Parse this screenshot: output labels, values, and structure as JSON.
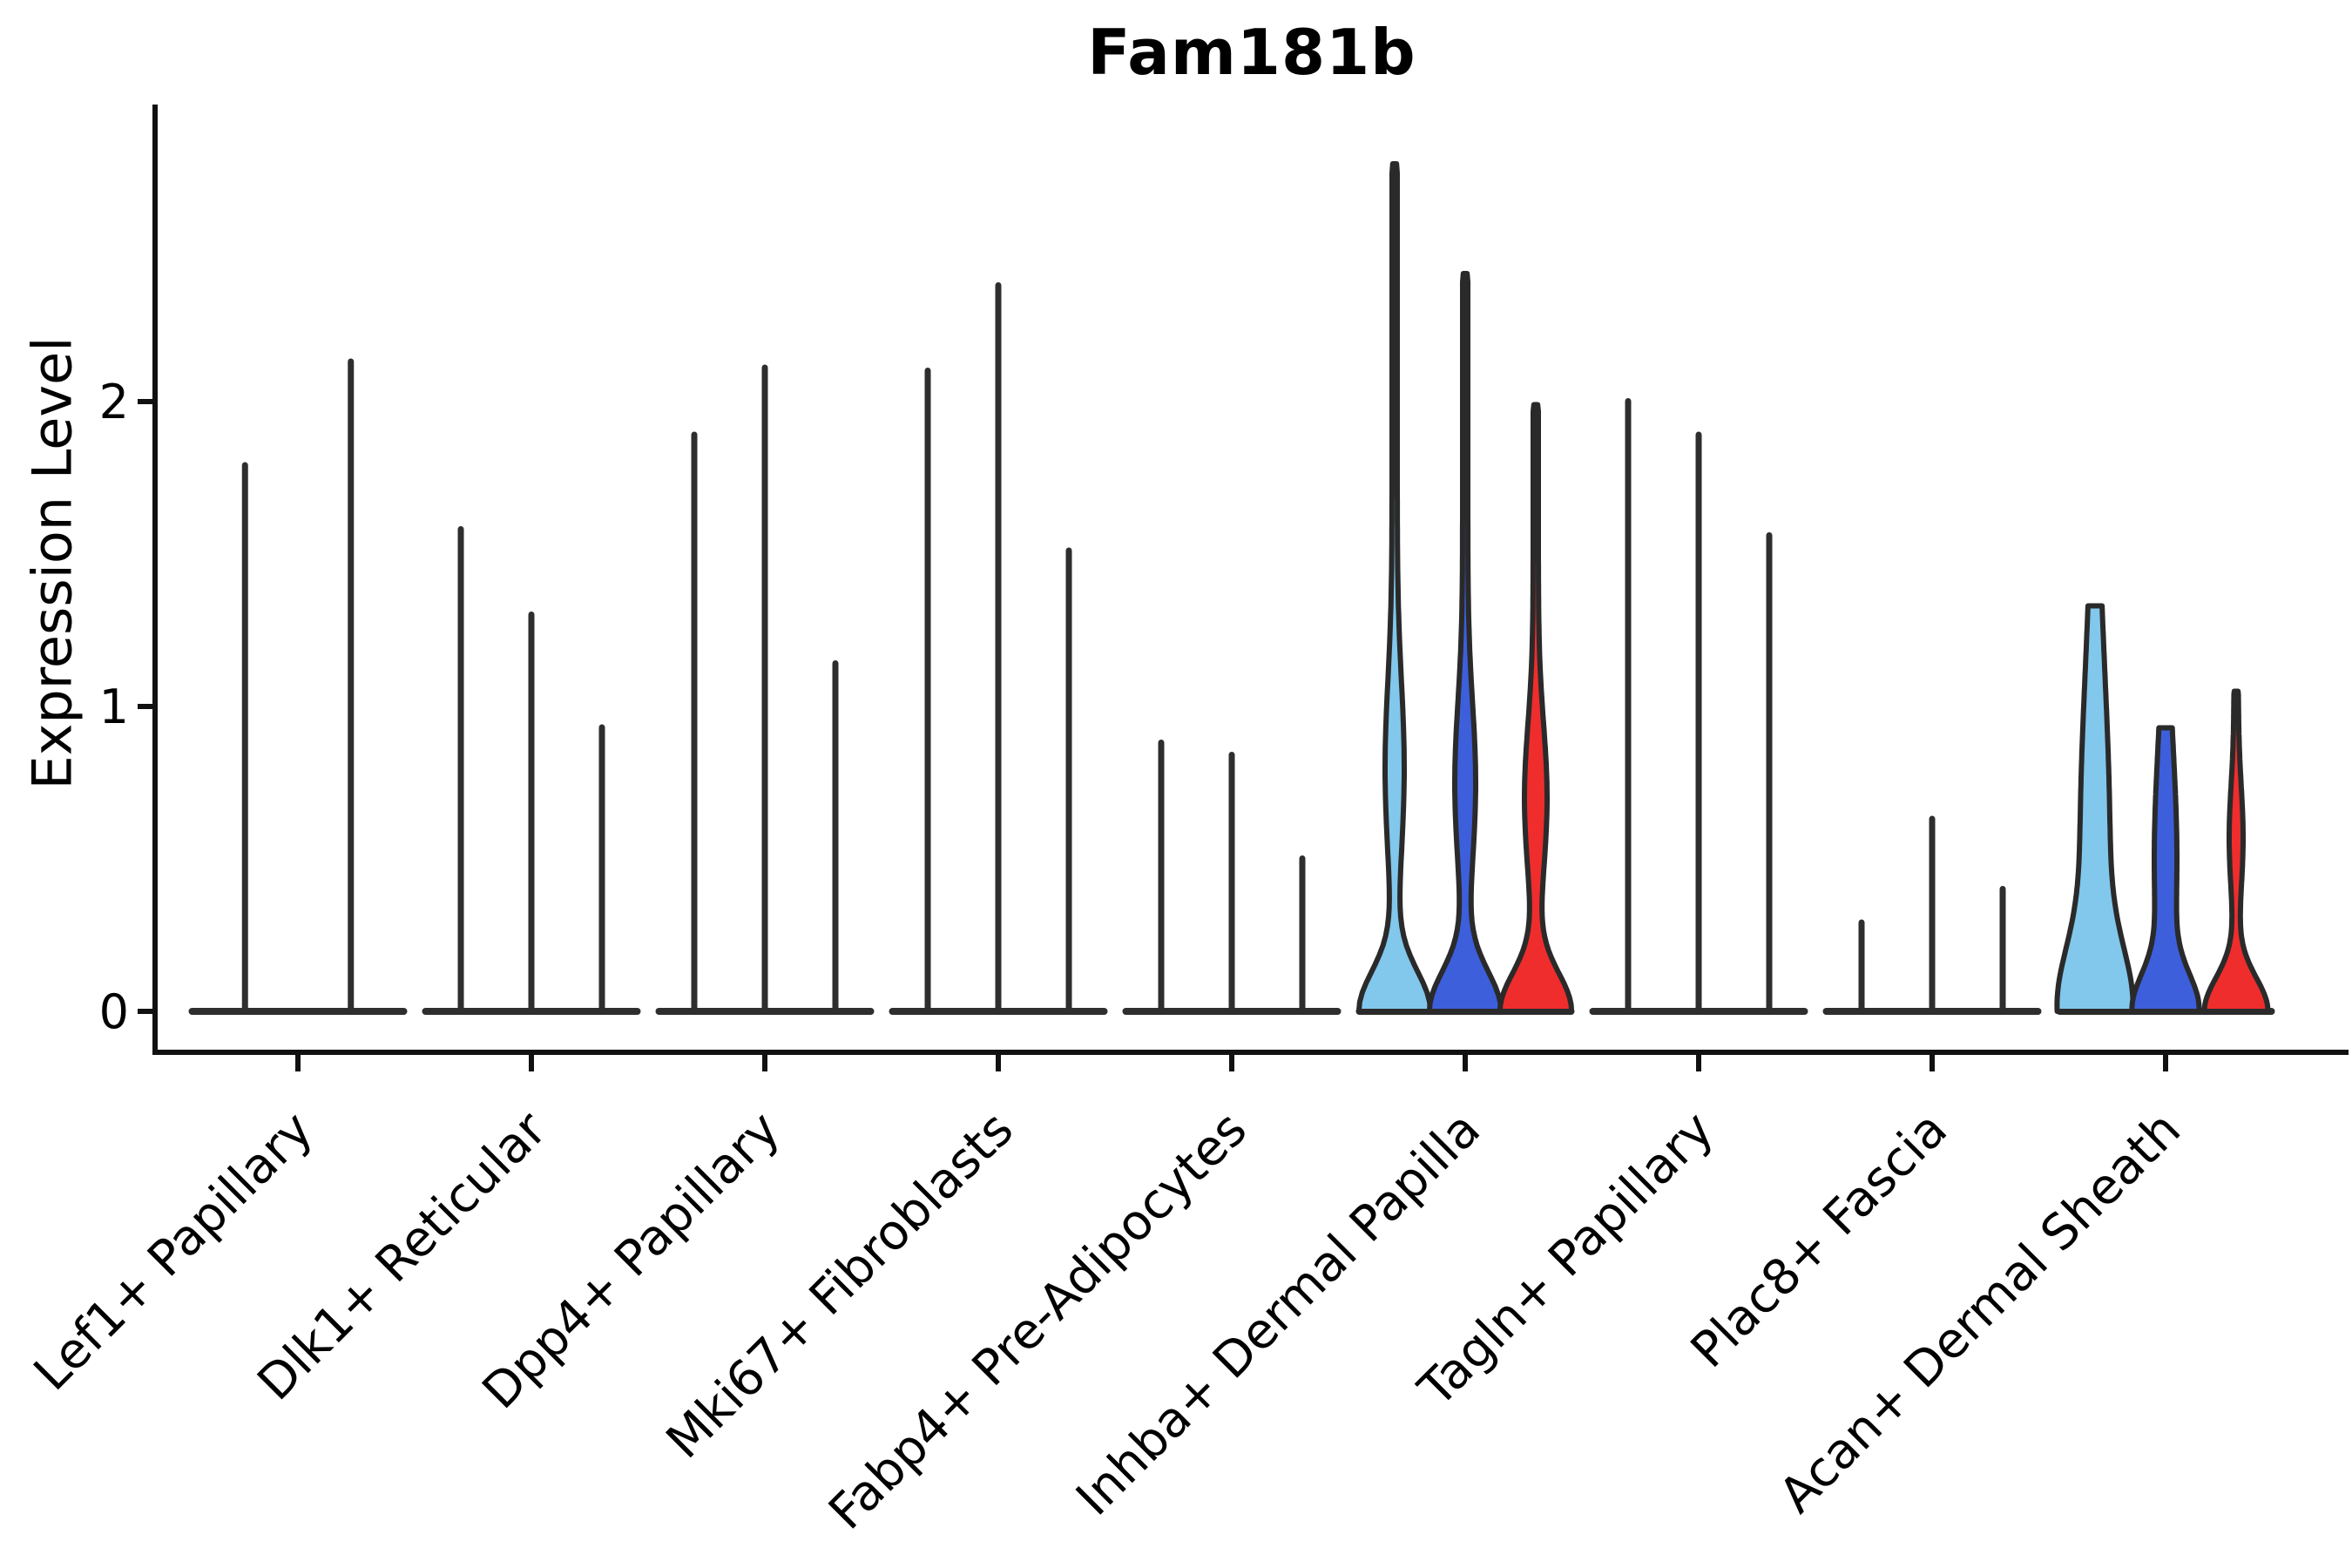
{
  "chart_data": {
    "type": "violin",
    "title": "Fam181b",
    "ylabel": "Expression Level",
    "yticks": [
      "0",
      "1",
      "2"
    ],
    "ytick_values": [
      0,
      1,
      2
    ],
    "ylim": [
      0,
      2.97
    ],
    "grid": false,
    "legend": "none",
    "split_colors": {
      "light_blue": "#82C7EC",
      "blue": "#3D5FDC",
      "red": "#EF2D2D"
    },
    "outline_color": "#2A2A2A",
    "spike_color": "#2E2E2E",
    "axis_color": "#111111",
    "categories": [
      "Lef1+ Papillary",
      "Dlk1+ Reticular",
      "Dpp4+ Papillary",
      "Mki67+ Fibroblasts",
      "Fabp4+ Pre-Adipocytes",
      "Inhba+ Dermal Papilla",
      "Tagln+ Papillary",
      "Plac8+ Fascia",
      "Acan+ Dermal Sheath"
    ],
    "groups": [
      {
        "category": "Lef1+ Papillary",
        "violins": [
          {
            "style": "spike",
            "max": 1.8
          },
          {
            "style": "spike",
            "max": 2.14
          }
        ]
      },
      {
        "category": "Dlk1+ Reticular",
        "violins": [
          {
            "style": "spike",
            "max": 1.59
          },
          {
            "style": "spike",
            "max": 1.31
          },
          {
            "style": "spike",
            "max": 0.94
          }
        ]
      },
      {
        "category": "Dpp4+ Papillary",
        "violins": [
          {
            "style": "spike",
            "max": 1.9
          },
          {
            "style": "spike",
            "max": 2.12
          },
          {
            "style": "spike",
            "max": 1.15
          }
        ]
      },
      {
        "category": "Mki67+ Fibroblasts",
        "violins": [
          {
            "style": "spike",
            "max": 2.11
          },
          {
            "style": "spike",
            "max": 2.39
          },
          {
            "style": "spike",
            "max": 1.52
          }
        ]
      },
      {
        "category": "Fabp4+ Pre-Adipocytes",
        "violins": [
          {
            "style": "spike",
            "max": 0.89
          },
          {
            "style": "spike",
            "max": 0.85
          },
          {
            "style": "spike",
            "max": 0.51
          }
        ]
      },
      {
        "category": "Inhba+ Dermal Papilla",
        "violins": [
          {
            "style": "filled",
            "color": "light_blue",
            "max": 2.78,
            "shape": {
              "s0": 3,
              "a1": 8,
              "bv": 0.8,
              "bs": 0.28,
              "a2": 38,
              "cs": 0.13,
              "top": "spike"
            }
          },
          {
            "style": "filled",
            "color": "blue",
            "max": 2.42,
            "shape": {
              "s0": 3,
              "a1": 9,
              "bv": 0.75,
              "bs": 0.26,
              "a2": 38,
              "cs": 0.13,
              "top": "spike"
            }
          },
          {
            "style": "filled",
            "color": "red",
            "max": 1.99,
            "shape": {
              "s0": 3,
              "a1": 10,
              "bv": 0.7,
              "bs": 0.24,
              "a2": 38,
              "cs": 0.125,
              "top": "spike"
            }
          }
        ]
      },
      {
        "category": "Tagln+ Papillary",
        "violins": [
          {
            "style": "spike",
            "max": 2.01
          },
          {
            "style": "spike",
            "max": 1.9
          },
          {
            "style": "spike",
            "max": 1.57
          }
        ]
      },
      {
        "category": "Plac8+ Fascia",
        "violins": [
          {
            "style": "spike",
            "max": 0.3
          },
          {
            "style": "spike",
            "max": 0.64
          },
          {
            "style": "spike",
            "max": 0.41
          }
        ]
      },
      {
        "category": "Acan+ Dermal Sheath",
        "violins": [
          {
            "style": "filled",
            "color": "light_blue",
            "max": 1.33,
            "shape": {
              "s0": 3,
              "a1": 14,
              "bv": 0.55,
              "bs": 0.55,
              "a2": 32,
              "cs": 0.2,
              "top": "flat"
            }
          },
          {
            "style": "filled",
            "color": "blue",
            "max": 0.93,
            "shape": {
              "s0": 3,
              "a1": 10,
              "bv": 0.5,
              "bs": 0.35,
              "a2": 32,
              "cs": 0.12,
              "top": "flat"
            }
          },
          {
            "style": "filled",
            "color": "red",
            "max": 1.05,
            "shape": {
              "s0": 2.5,
              "a1": 5.5,
              "bv": 0.57,
              "bs": 0.17,
              "a2": 34,
              "cs": 0.11,
              "top": "spike"
            }
          }
        ]
      }
    ]
  }
}
